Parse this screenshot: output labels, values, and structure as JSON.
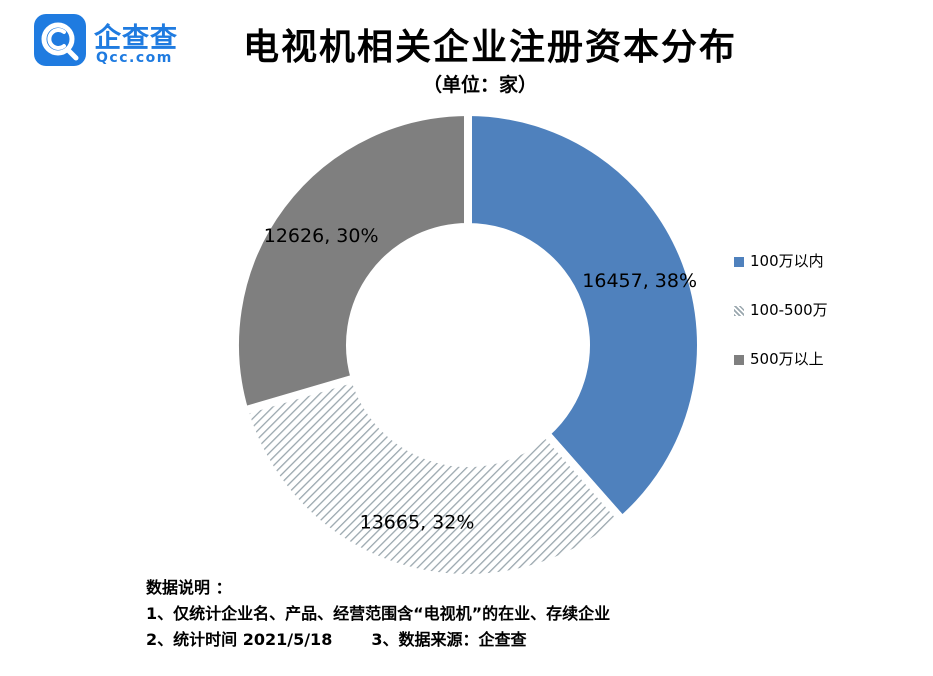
{
  "logo": {
    "name": "企查查",
    "domain": "Qcc.com",
    "brand_color": "#1f7be0"
  },
  "chart_data": {
    "type": "pie",
    "donut": true,
    "title": "电视机相关企业注册资本分布",
    "subtitle": "（单位：家）",
    "legend_position": "right",
    "series": [
      {
        "name": "100万以内",
        "value": 16457,
        "percent": 38,
        "data_label": "16457, 38%",
        "color": "#4f81bd",
        "pattern": "solid"
      },
      {
        "name": "100-500万",
        "value": 13665,
        "percent": 32,
        "data_label": "13665, 32%",
        "color": "#9aa7ae",
        "pattern": "diagonal-hatch"
      },
      {
        "name": "500万以上",
        "value": 12626,
        "percent": 30,
        "data_label": "12626, 30%",
        "color": "#7f7f7f",
        "pattern": "solid"
      }
    ]
  },
  "notes": {
    "heading": "数据说明 ：",
    "line1": "1、仅统计企业名、产品、经营范围含“电视机”的在业、存续企业",
    "line2": "2、统计时间 2021/5/18       3、数据来源：企查查"
  }
}
